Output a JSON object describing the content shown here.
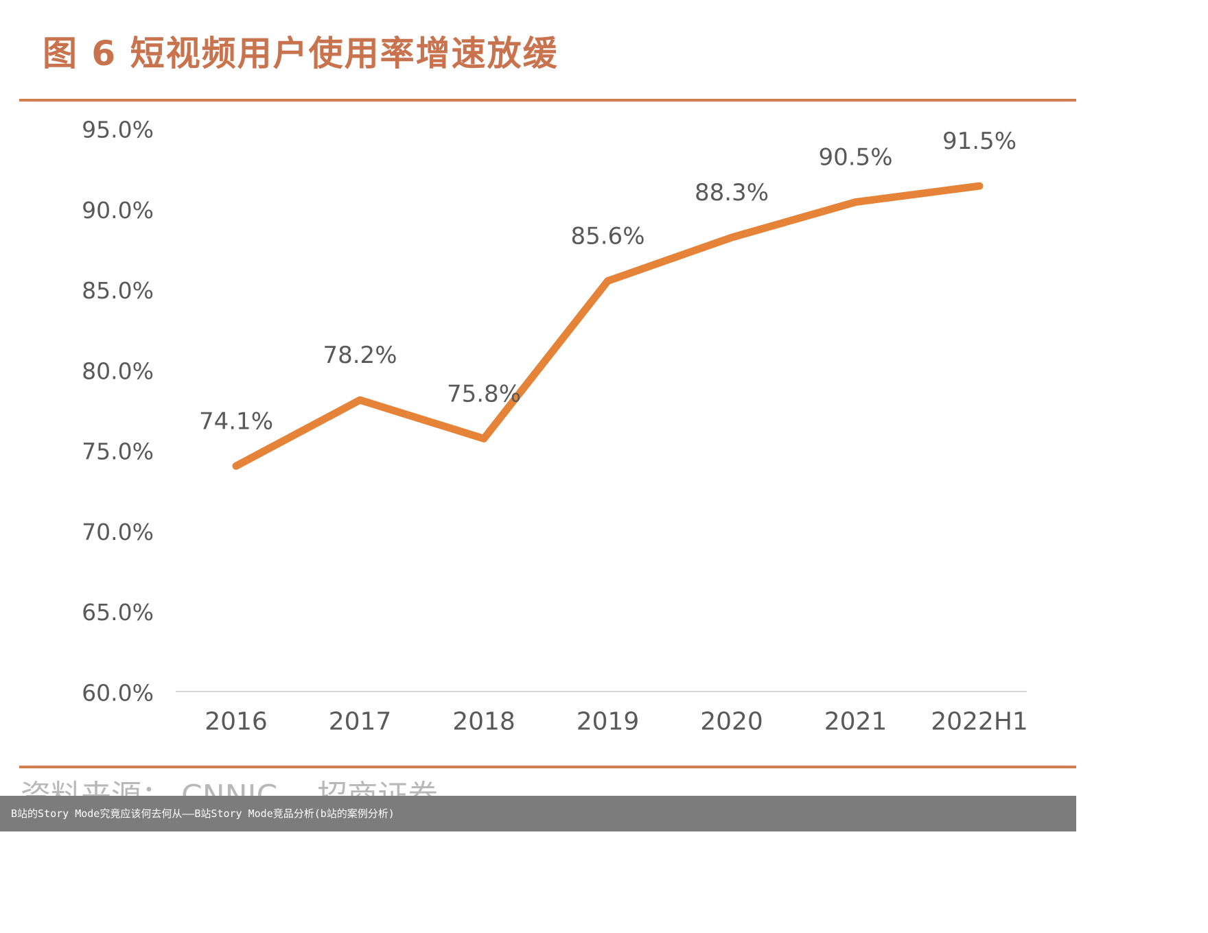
{
  "title": "图 6 短视频用户使用率增速放缓",
  "source": "资料来源： CNNIC， 招商证券",
  "footer_caption": "B站的Story Mode究竟应该何去何从——B站Story Mode竞品分析(b站的案例分析)",
  "colors": {
    "line": "#e58438",
    "accent": "#d2804f",
    "title": "#c8734d",
    "axis_text": "#595959"
  },
  "chart_data": {
    "type": "line",
    "categories": [
      "2016",
      "2017",
      "2018",
      "2019",
      "2020",
      "2021",
      "2022H1"
    ],
    "series": [
      {
        "values": [
          74.1,
          78.2,
          75.8,
          85.6,
          88.3,
          90.5,
          91.5
        ]
      }
    ],
    "data_labels": [
      "74.1%",
      "78.2%",
      "75.8%",
      "85.6%",
      "88.3%",
      "90.5%",
      "91.5%"
    ],
    "y_ticks": [
      "60.0%",
      "65.0%",
      "70.0%",
      "75.0%",
      "80.0%",
      "85.0%",
      "90.0%",
      "95.0%"
    ],
    "ylim": [
      60,
      95
    ],
    "grid": false
  }
}
